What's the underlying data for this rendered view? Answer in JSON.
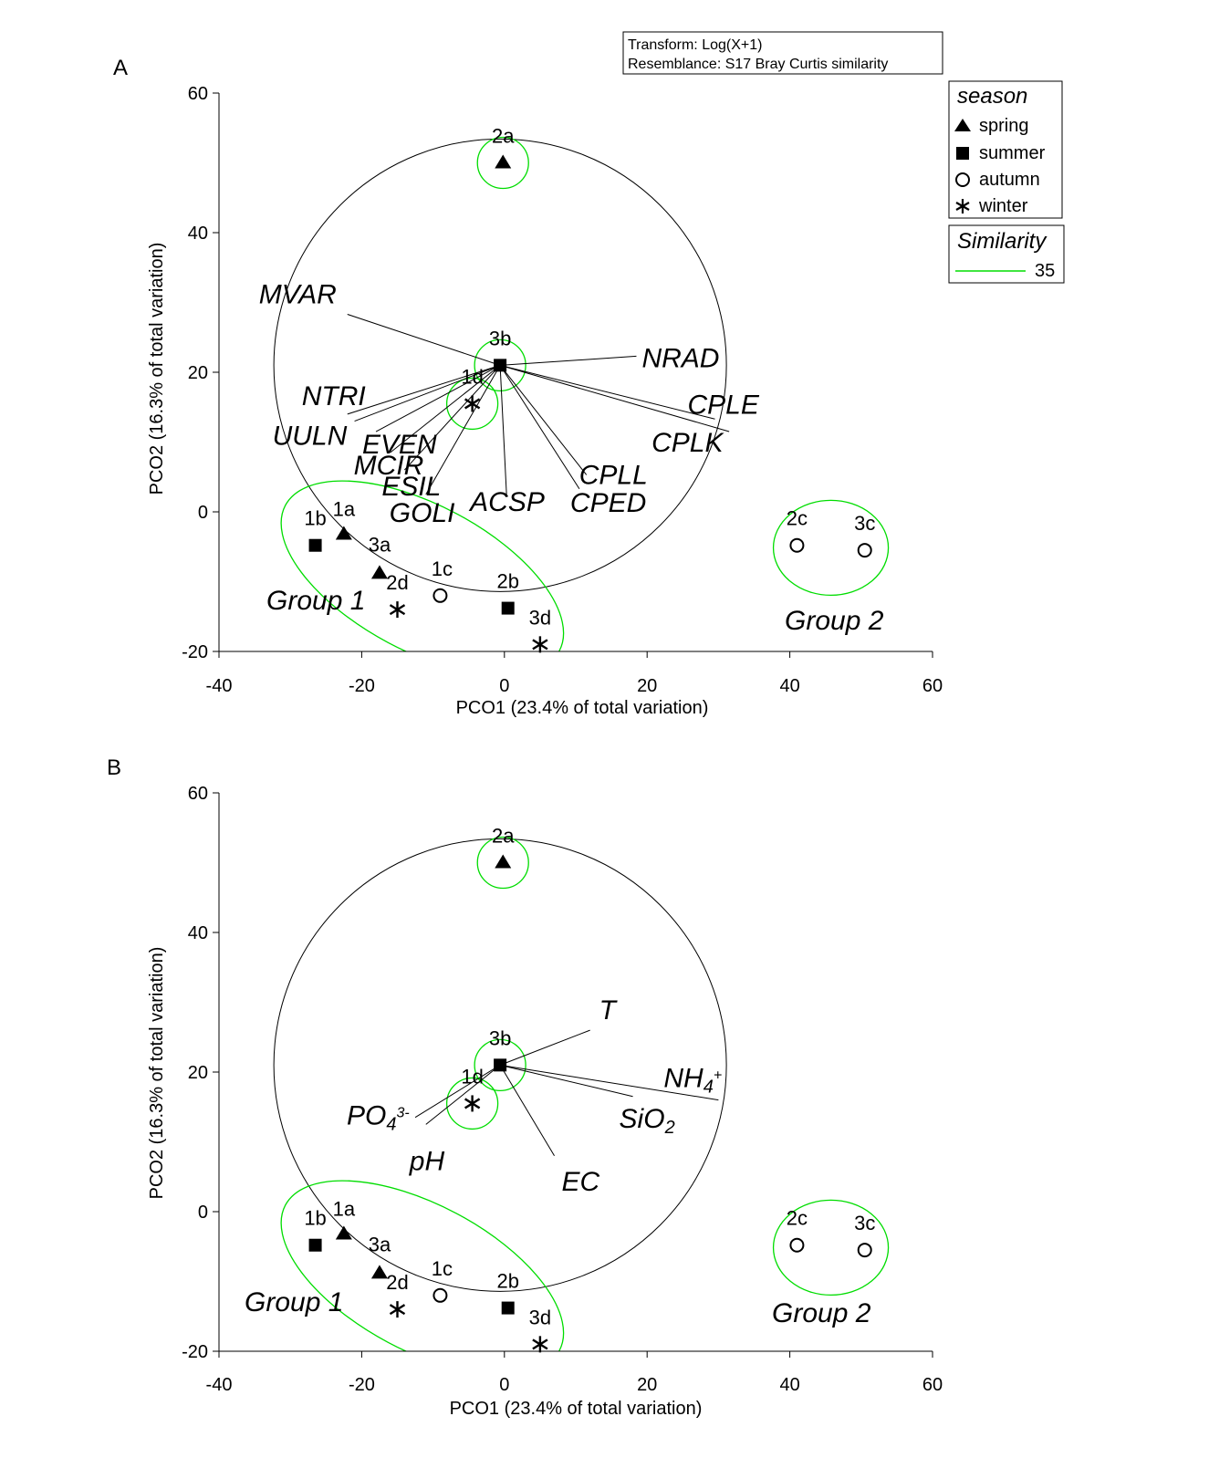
{
  "transform_box": {
    "line1": "Transform: Log(X+1)",
    "line2": "Resemblance: S17 Bray Curtis similarity"
  },
  "legend": {
    "title": "season",
    "items": [
      {
        "label": "spring",
        "symbol": "triangle"
      },
      {
        "label": "summer",
        "symbol": "square"
      },
      {
        "label": "autumn",
        "symbol": "circle"
      },
      {
        "label": "winter",
        "symbol": "asterisk"
      }
    ],
    "similarity_title": "Similarity",
    "similarity_value": "35",
    "similarity_color": "#00dd00"
  },
  "colors": {
    "points": "#000000",
    "similarity_contour": "#00dd00",
    "vectors": "#000000"
  },
  "chart_data": [
    {
      "panel": "A",
      "type": "scatter",
      "xlabel": "PCO1 (23.4% of total variation)",
      "ylabel": "PCO2 (16.3% of total variation)",
      "xlim": [
        -40,
        60
      ],
      "ylim": [
        -20,
        60
      ],
      "xticks": [
        -40,
        -20,
        0,
        20,
        40,
        60
      ],
      "yticks": [
        60,
        40,
        20,
        0,
        -20
      ],
      "points": [
        {
          "label": "2a",
          "x": -0.2,
          "y": 50.0,
          "season": "spring"
        },
        {
          "label": "3b",
          "x": -0.6,
          "y": 21.0,
          "season": "summer"
        },
        {
          "label": "1d",
          "x": -4.5,
          "y": 15.5,
          "season": "winter"
        },
        {
          "label": "1b",
          "x": -26.5,
          "y": -4.8,
          "season": "summer"
        },
        {
          "label": "1a",
          "x": -22.5,
          "y": -3.2,
          "season": "spring"
        },
        {
          "label": "3a",
          "x": -17.5,
          "y": -8.8,
          "season": "spring"
        },
        {
          "label": "2d",
          "x": -15.0,
          "y": -14.0,
          "season": "winter"
        },
        {
          "label": "1c",
          "x": -9.0,
          "y": -12.0,
          "season": "autumn"
        },
        {
          "label": "2b",
          "x": 0.5,
          "y": -13.8,
          "season": "summer"
        },
        {
          "label": "3d",
          "x": 5.0,
          "y": -19.0,
          "season": "winter"
        },
        {
          "label": "2c",
          "x": 41.0,
          "y": -4.8,
          "season": "autumn"
        },
        {
          "label": "3c",
          "x": 50.5,
          "y": -5.5,
          "season": "autumn"
        }
      ],
      "vectors": [
        {
          "label": "MVAR",
          "x": -22.0,
          "y": 28.3
        },
        {
          "label": "NRAD",
          "x": 18.5,
          "y": 22.3
        },
        {
          "label": "CPLE",
          "x": 29.5,
          "y": 13.3
        },
        {
          "label": "CPLK",
          "x": 31.5,
          "y": 11.5
        },
        {
          "label": "CPLL",
          "x": 11.5,
          "y": 5.3
        },
        {
          "label": "CPED",
          "x": 10.5,
          "y": 3.3
        },
        {
          "label": "ACSP",
          "x": 0.3,
          "y": 2.5
        },
        {
          "label": "NTRI",
          "x": -22.0,
          "y": 14.0
        },
        {
          "label": "UULN",
          "x": -21.0,
          "y": 13.0
        },
        {
          "label": "EVEN",
          "x": -18.0,
          "y": 11.5
        },
        {
          "label": "MCIR",
          "x": -16.0,
          "y": 8.5
        },
        {
          "label": "ESIL",
          "x": -14.0,
          "y": 6.0
        },
        {
          "label": "GOLI",
          "x": -11.0,
          "y": 2.5
        }
      ],
      "group_labels": [
        "Group 1",
        "Group 2"
      ]
    },
    {
      "panel": "B",
      "type": "scatter",
      "xlabel": "PCO1 (23.4% of total variation)",
      "ylabel": "PCO2 (16.3% of total variation)",
      "xlim": [
        -40,
        60
      ],
      "ylim": [
        -20,
        60
      ],
      "xticks": [
        -40,
        -20,
        0,
        20,
        40,
        60
      ],
      "yticks": [
        60,
        40,
        20,
        0,
        -20
      ],
      "points": [
        {
          "label": "2a",
          "x": -0.2,
          "y": 50.0,
          "season": "spring"
        },
        {
          "label": "3b",
          "x": -0.6,
          "y": 21.0,
          "season": "summer"
        },
        {
          "label": "1d",
          "x": -4.5,
          "y": 15.5,
          "season": "winter"
        },
        {
          "label": "1b",
          "x": -26.5,
          "y": -4.8,
          "season": "summer"
        },
        {
          "label": "1a",
          "x": -22.5,
          "y": -3.2,
          "season": "spring"
        },
        {
          "label": "3a",
          "x": -17.5,
          "y": -8.8,
          "season": "spring"
        },
        {
          "label": "2d",
          "x": -15.0,
          "y": -14.0,
          "season": "winter"
        },
        {
          "label": "1c",
          "x": -9.0,
          "y": -12.0,
          "season": "autumn"
        },
        {
          "label": "2b",
          "x": 0.5,
          "y": -13.8,
          "season": "summer"
        },
        {
          "label": "3d",
          "x": 5.0,
          "y": -19.0,
          "season": "winter"
        },
        {
          "label": "2c",
          "x": 41.0,
          "y": -4.8,
          "season": "autumn"
        },
        {
          "label": "3c",
          "x": 50.5,
          "y": -5.5,
          "season": "autumn"
        }
      ],
      "vectors": [
        {
          "label": "T",
          "x": 12.0,
          "y": 26.0
        },
        {
          "label": "NH4+",
          "x": 30.0,
          "y": 16.0
        },
        {
          "label": "SiO2",
          "x": 18.0,
          "y": 16.5
        },
        {
          "label": "EC",
          "x": 7.0,
          "y": 8.0
        },
        {
          "label": "PO43-",
          "x": -12.5,
          "y": 13.5
        },
        {
          "label": "pH",
          "x": -11.0,
          "y": 12.5
        }
      ],
      "group_labels": [
        "Group 1",
        "Group 2"
      ]
    }
  ]
}
